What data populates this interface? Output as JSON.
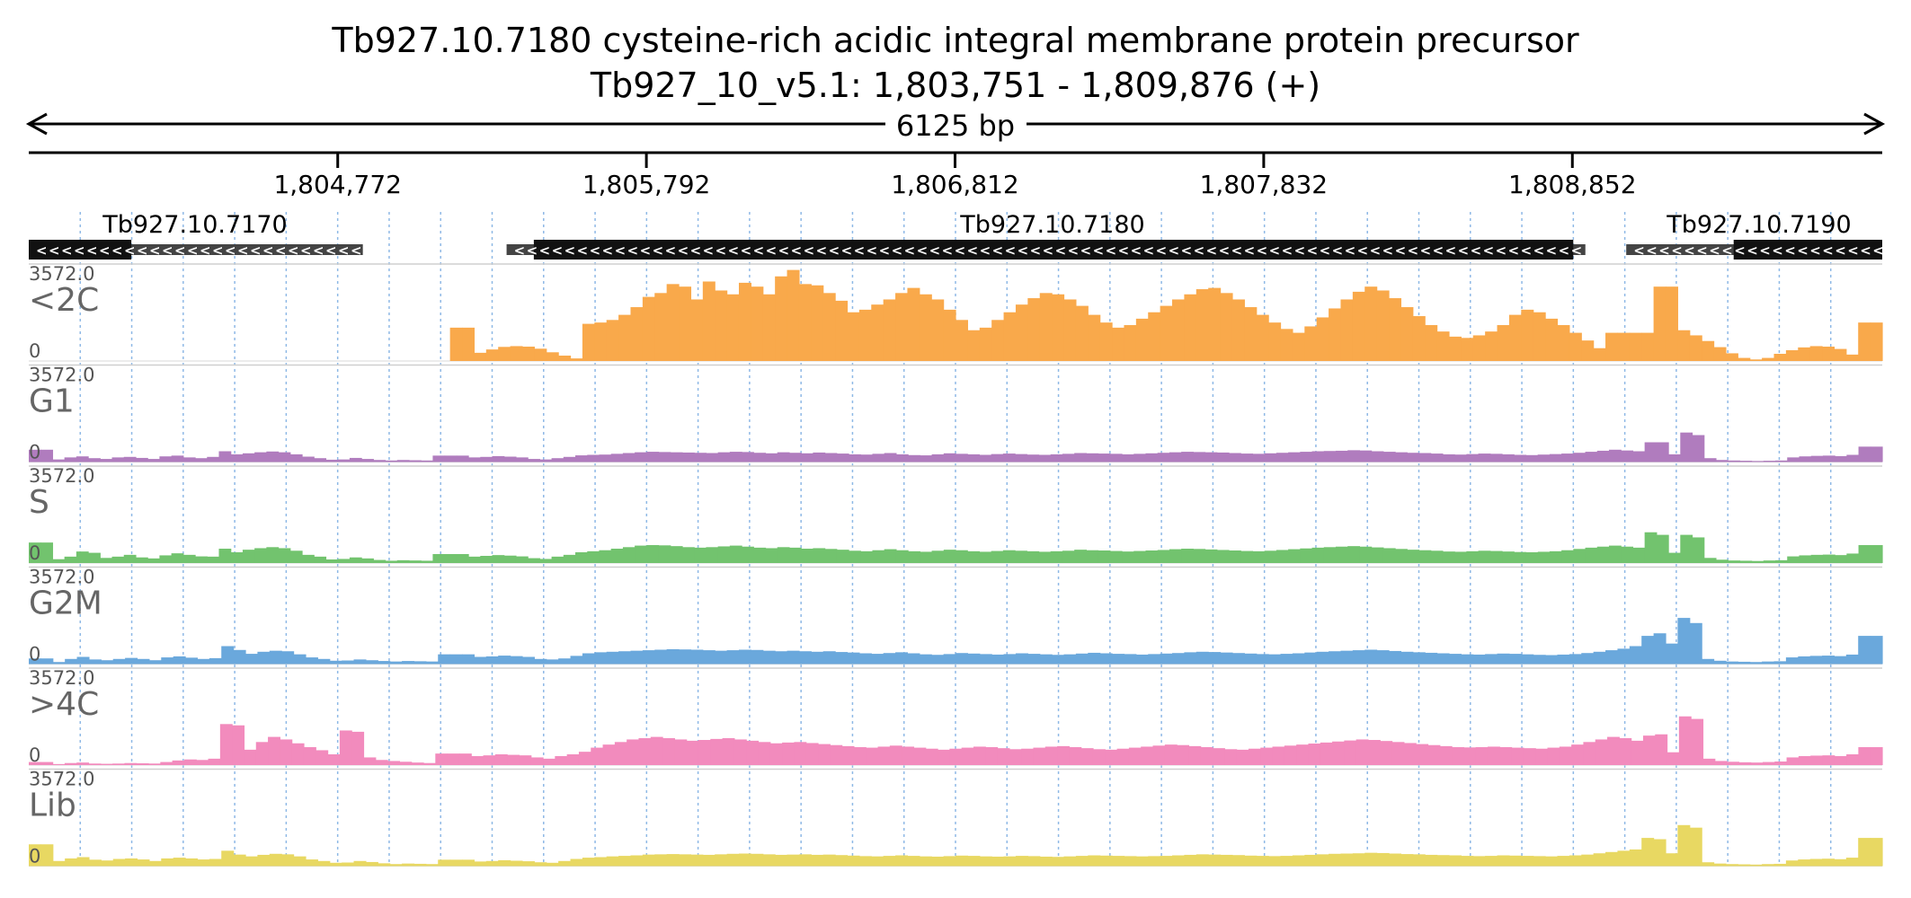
{
  "title_line1": "Tb927.10.7180  cysteine-rich  acidic integral membrane protein precursor",
  "title_line2": "Tb927_10_v5.1: 1,803,751 - 1,809,876 (+)",
  "span_label": "6125 bp",
  "chart_data": {
    "type": "area",
    "title": "Tb927.10.7180  cysteine-rich  acidic integral membrane protein precursor",
    "subtitle": "Tb927_10_v5.1: 1,803,751 - 1,809,876 (+)",
    "x_range": [
      1803751,
      1809876
    ],
    "x_ticks": [
      {
        "value": 1804772,
        "label": "1,804,772"
      },
      {
        "value": 1805792,
        "label": "1,805,792"
      },
      {
        "value": 1806812,
        "label": "1,806,812"
      },
      {
        "value": 1807832,
        "label": "1,807,832"
      },
      {
        "value": 1808852,
        "label": "1,808,852"
      }
    ],
    "y_range": [
      0,
      3572.0
    ],
    "y_max_label": "3572.0",
    "y_min_label": "0",
    "genes": [
      {
        "name": "Tb927.10.7170",
        "strand": "-",
        "span": [
          1803751,
          1804855
        ],
        "cds": [
          1803751,
          1804090
        ]
      },
      {
        "name": "Tb927.10.7180",
        "strand": "-",
        "span": [
          1805330,
          1808895
        ],
        "cds": [
          1805420,
          1808855
        ]
      },
      {
        "name": "Tb927.10.7190",
        "strand": "-",
        "span": [
          1809030,
          1809876
        ],
        "cds": [
          1809385,
          1809876
        ]
      }
    ],
    "series": [
      {
        "name": "<2C",
        "color": "#f9a94b",
        "values": [
          0,
          0,
          0,
          0,
          0,
          0,
          0,
          0,
          0,
          0,
          0,
          0,
          0,
          0,
          0,
          0,
          0,
          0,
          0,
          0,
          0,
          0,
          0,
          0,
          0,
          0,
          0,
          0,
          0,
          0,
          0,
          0,
          0,
          0,
          0,
          1300,
          1300,
          320,
          450,
          550,
          580,
          560,
          480,
          340,
          210,
          100,
          1450,
          1500,
          1600,
          1800,
          2100,
          2500,
          2650,
          3000,
          2900,
          2400,
          3100,
          2750,
          2600,
          3050,
          2900,
          2600,
          3300,
          3550,
          3000,
          2950,
          2650,
          2350,
          1900,
          2000,
          2200,
          2400,
          2650,
          2850,
          2600,
          2400,
          2000,
          1600,
          1200,
          1300,
          1600,
          1900,
          2200,
          2450,
          2650,
          2600,
          2400,
          2150,
          1800,
          1500,
          1300,
          1400,
          1650,
          1900,
          2150,
          2400,
          2600,
          2800,
          2850,
          2650,
          2400,
          2100,
          1800,
          1500,
          1250,
          1100,
          1350,
          1700,
          2050,
          2400,
          2700,
          2900,
          2750,
          2450,
          2100,
          1750,
          1400,
          1150,
          950,
          900,
          1000,
          1150,
          1400,
          1800,
          2000,
          1900,
          1650,
          1400,
          1100,
          800,
          500,
          1100,
          1100,
          1100,
          1100,
          2900,
          2900,
          1200,
          1000,
          780,
          540,
          300,
          120,
          60,
          120,
          280,
          420,
          530,
          580,
          560,
          470,
          250,
          1500,
          1500
        ]
      },
      {
        "name": "G1",
        "color": "#b07cbe",
        "values": [
          480,
          480,
          100,
          180,
          220,
          150,
          120,
          180,
          200,
          160,
          120,
          220,
          250,
          180,
          150,
          200,
          420,
          300,
          340,
          380,
          410,
          380,
          300,
          210,
          150,
          90,
          100,
          160,
          120,
          80,
          60,
          80,
          70,
          60,
          250,
          250,
          250,
          180,
          200,
          230,
          210,
          180,
          120,
          100,
          150,
          200,
          260,
          280,
          290,
          320,
          350,
          380,
          400,
          390,
          380,
          370,
          360,
          350,
          380,
          400,
          390,
          360,
          340,
          380,
          360,
          340,
          370,
          350,
          330,
          300,
          290,
          320,
          350,
          300,
          270,
          260,
          300,
          340,
          320,
          300,
          280,
          310,
          330,
          310,
          290,
          280,
          300,
          320,
          350,
          340,
          330,
          320,
          300,
          320,
          340,
          360,
          380,
          400,
          390,
          380,
          370,
          350,
          330,
          320,
          340,
          360,
          380,
          400,
          420,
          430,
          440,
          460,
          450,
          420,
          400,
          380,
          360,
          350,
          330,
          300,
          290,
          310,
          330,
          320,
          300,
          280,
          270,
          290,
          310,
          330,
          360,
          400,
          440,
          480,
          450,
          420,
          770,
          770,
          300,
          1150,
          1050,
          150,
          80,
          60,
          50,
          40,
          50,
          60,
          180,
          220,
          240,
          250,
          230,
          280,
          600,
          600
        ]
      },
      {
        "name": "S",
        "color": "#72c36e",
        "values": [
          800,
          800,
          150,
          250,
          450,
          400,
          200,
          250,
          320,
          220,
          180,
          300,
          380,
          320,
          260,
          250,
          560,
          420,
          520,
          580,
          620,
          580,
          480,
          320,
          250,
          140,
          160,
          220,
          180,
          120,
          90,
          110,
          100,
          90,
          350,
          350,
          350,
          250,
          280,
          310,
          290,
          260,
          190,
          160,
          250,
          320,
          420,
          460,
          500,
          560,
          620,
          680,
          700,
          690,
          660,
          620,
          600,
          620,
          650,
          680,
          640,
          600,
          580,
          620,
          600,
          560,
          580,
          550,
          520,
          480,
          460,
          500,
          540,
          500,
          460,
          440,
          480,
          520,
          500,
          460,
          440,
          470,
          500,
          480,
          460,
          440,
          460,
          480,
          520,
          500,
          490,
          470,
          450,
          470,
          490,
          510,
          540,
          560,
          550,
          530,
          510,
          490,
          470,
          460,
          480,
          510,
          540,
          570,
          600,
          620,
          640,
          660,
          640,
          610,
          580,
          550,
          520,
          500,
          480,
          450,
          440,
          460,
          480,
          470,
          450,
          430,
          420,
          440,
          460,
          500,
          550,
          600,
          640,
          680,
          640,
          600,
          1200,
          1100,
          400,
          1100,
          1000,
          200,
          130,
          100,
          90,
          80,
          100,
          110,
          260,
          300,
          320,
          330,
          310,
          370,
          700,
          700
        ]
      },
      {
        "name": "G2M",
        "color": "#6aa8dc",
        "values": [
          220,
          220,
          80,
          200,
          280,
          180,
          150,
          200,
          240,
          200,
          150,
          260,
          300,
          250,
          200,
          230,
          700,
          550,
          400,
          480,
          520,
          500,
          380,
          260,
          200,
          130,
          140,
          180,
          150,
          120,
          100,
          120,
          110,
          100,
          380,
          380,
          380,
          280,
          300,
          330,
          310,
          280,
          200,
          180,
          220,
          320,
          420,
          460,
          480,
          500,
          520,
          540,
          560,
          580,
          570,
          560,
          540,
          520,
          540,
          560,
          550,
          520,
          500,
          520,
          500,
          480,
          500,
          470,
          450,
          420,
          400,
          430,
          460,
          420,
          380,
          360,
          390,
          430,
          410,
          390,
          370,
          390,
          420,
          400,
          380,
          360,
          380,
          410,
          440,
          420,
          400,
          390,
          370,
          390,
          410,
          430,
          460,
          480,
          470,
          450,
          430,
          410,
          390,
          380,
          400,
          420,
          450,
          480,
          500,
          520,
          540,
          560,
          540,
          510,
          480,
          460,
          440,
          420,
          400,
          380,
          370,
          390,
          410,
          400,
          380,
          360,
          350,
          370,
          390,
          430,
          480,
          540,
          600,
          700,
          1100,
          1200,
          800,
          1800,
          1600,
          200,
          130,
          100,
          90,
          80,
          100,
          110,
          260,
          300,
          320,
          330,
          310,
          370,
          1100,
          1100
        ]
      },
      {
        "name": ">4C",
        "color": "#f28bbd",
        "values": [
          120,
          120,
          40,
          80,
          100,
          60,
          50,
          60,
          80,
          70,
          60,
          120,
          180,
          220,
          200,
          250,
          1600,
          1550,
          600,
          900,
          1100,
          1000,
          850,
          700,
          580,
          420,
          1350,
          1300,
          300,
          200,
          160,
          130,
          100,
          80,
          450,
          450,
          450,
          350,
          380,
          420,
          400,
          380,
          300,
          250,
          350,
          420,
          520,
          680,
          800,
          900,
          1000,
          1050,
          1100,
          1050,
          1000,
          950,
          980,
          1020,
          1050,
          1000,
          950,
          900,
          850,
          880,
          900,
          860,
          820,
          780,
          740,
          700,
          680,
          720,
          760,
          720,
          680,
          640,
          600,
          640,
          680,
          720,
          700,
          660,
          620,
          640,
          680,
          720,
          740,
          700,
          660,
          620,
          600,
          640,
          680,
          720,
          760,
          800,
          780,
          740,
          700,
          660,
          620,
          600,
          640,
          680,
          720,
          760,
          800,
          840,
          880,
          920,
          960,
          1000,
          980,
          940,
          900,
          860,
          820,
          780,
          740,
          700,
          690,
          700,
          720,
          700,
          680,
          660,
          640,
          680,
          720,
          800,
          900,
          1000,
          1100,
          1050,
          950,
          1150,
          1200,
          500,
          1900,
          1800,
          250,
          160,
          130,
          110,
          100,
          120,
          140,
          300,
          350,
          370,
          380,
          350,
          420,
          700,
          700
        ]
      },
      {
        "name": "Lib",
        "color": "#e8d862",
        "values": [
          850,
          850,
          200,
          300,
          350,
          250,
          220,
          280,
          300,
          260,
          200,
          300,
          330,
          300,
          260,
          280,
          600,
          450,
          380,
          440,
          480,
          460,
          380,
          260,
          200,
          130,
          140,
          200,
          160,
          110,
          80,
          100,
          90,
          80,
          250,
          250,
          250,
          180,
          200,
          230,
          210,
          190,
          150,
          130,
          200,
          280,
          330,
          350,
          380,
          400,
          420,
          450,
          460,
          470,
          460,
          450,
          440,
          460,
          480,
          490,
          480,
          460,
          440,
          450,
          460,
          440,
          450,
          430,
          410,
          390,
          380,
          400,
          420,
          400,
          380,
          370,
          390,
          410,
          400,
          380,
          370,
          380,
          400,
          390,
          370,
          360,
          380,
          400,
          420,
          410,
          400,
          390,
          380,
          390,
          400,
          420,
          440,
          460,
          450,
          440,
          430,
          410,
          400,
          390,
          400,
          420,
          440,
          460,
          480,
          490,
          500,
          520,
          510,
          490,
          470,
          460,
          440,
          430,
          420,
          400,
          390,
          400,
          420,
          410,
          400,
          390,
          380,
          400,
          420,
          450,
          500,
          550,
          600,
          650,
          1100,
          1050,
          500,
          1600,
          1500,
          150,
          100,
          80,
          70,
          60,
          80,
          90,
          220,
          260,
          280,
          290,
          270,
          330,
          1100,
          1100
        ]
      }
    ]
  }
}
